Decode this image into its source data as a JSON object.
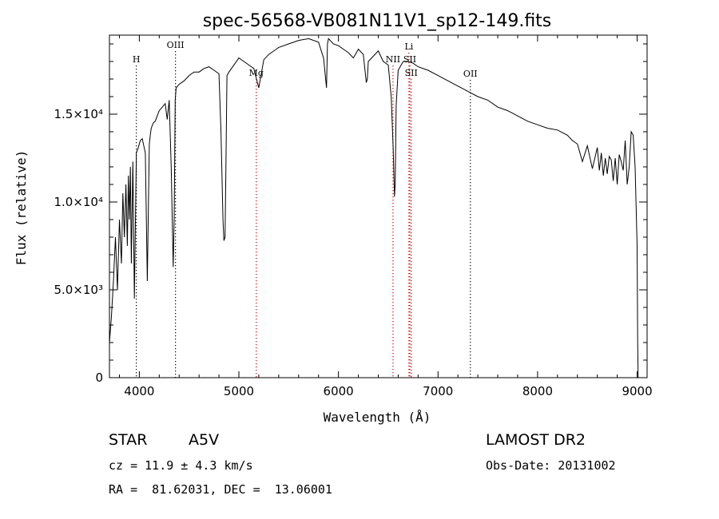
{
  "chart_data": {
    "type": "line",
    "title": "spec-56568-VB081N11V1_sp12-149.fits",
    "xlabel": "Wavelength (Å)",
    "ylabel": "Flux (relative)",
    "xlim": [
      3700,
      9100
    ],
    "ylim": [
      0,
      19500
    ],
    "x_ticks": [
      4000,
      5000,
      6000,
      7000,
      8000,
      9000
    ],
    "x_tick_labels": [
      "4000",
      "5000",
      "6000",
      "7000",
      "8000",
      "9000"
    ],
    "y_ticks": [
      0,
      5000,
      10000,
      15000
    ],
    "y_tick_labels": [
      "0",
      "5.0×10³",
      "1.0×10⁴",
      "1.5×10⁴"
    ],
    "series": [
      {
        "x": [
          3700,
          3720,
          3740,
          3760,
          3780,
          3800,
          3820,
          3835,
          3850,
          3865,
          3880,
          3890,
          3900,
          3910,
          3920,
          3935,
          3950,
          3970,
          3990,
          4010,
          4030,
          4060,
          4080,
          4100,
          4110,
          4120,
          4140,
          4160,
          4180,
          4200,
          4230,
          4260,
          4280,
          4300,
          4320,
          4340,
          4350,
          4360,
          4370,
          4400,
          4450,
          4500,
          4550,
          4600,
          4650,
          4700,
          4750,
          4800,
          4820,
          4840,
          4850,
          4861,
          4870,
          4880,
          4900,
          4950,
          5000,
          5050,
          5100,
          5150,
          5200,
          5250,
          5300,
          5400,
          5500,
          5600,
          5700,
          5800,
          5850,
          5880,
          5890,
          5900,
          5950,
          6000,
          6050,
          6100,
          6150,
          6200,
          6250,
          6280,
          6290,
          6300,
          6350,
          6400,
          6450,
          6500,
          6530,
          6550,
          6563,
          6570,
          6580,
          6600,
          6650,
          6700,
          6750,
          6800,
          6900,
          7000,
          7100,
          7200,
          7300,
          7400,
          7500,
          7600,
          7700,
          7800,
          7900,
          8000,
          8100,
          8200,
          8300,
          8350,
          8400,
          8450,
          8500,
          8550,
          8600,
          8620,
          8640,
          8660,
          8680,
          8700,
          8720,
          8740,
          8760,
          8780,
          8800,
          8820,
          8840,
          8860,
          8880,
          8900,
          8920,
          8940,
          8960,
          8980,
          9000,
          9005,
          9010
        ],
        "y": [
          2000,
          3500,
          5500,
          8000,
          5000,
          9000,
          6500,
          10500,
          8000,
          11000,
          7500,
          11500,
          9000,
          12000,
          6500,
          12300,
          4500,
          12800,
          13100,
          13500,
          13600,
          12800,
          5500,
          13300,
          13800,
          14200,
          14500,
          14600,
          14900,
          15200,
          15400,
          15600,
          14700,
          15800,
          12000,
          6300,
          9000,
          15800,
          16500,
          16700,
          16900,
          17200,
          17400,
          17400,
          17600,
          17700,
          17500,
          17300,
          14000,
          9000,
          7800,
          8000,
          12000,
          17200,
          17400,
          17800,
          18200,
          18000,
          17800,
          17600,
          16500,
          18100,
          18400,
          18800,
          19000,
          19200,
          19300,
          19100,
          18200,
          16500,
          19000,
          19300,
          19000,
          18900,
          18700,
          18500,
          18200,
          18700,
          18400,
          16800,
          17000,
          18000,
          18300,
          18600,
          18000,
          17800,
          16000,
          13000,
          10300,
          11000,
          15500,
          17500,
          18000,
          18000,
          17900,
          17700,
          17500,
          17200,
          16900,
          16600,
          16300,
          16000,
          15800,
          15400,
          15200,
          14900,
          14600,
          14400,
          14200,
          14100,
          13800,
          13500,
          13300,
          12300,
          13200,
          11900,
          13100,
          11800,
          12800,
          11500,
          12500,
          11600,
          12600,
          12400,
          11200,
          12500,
          11000,
          12700,
          12300,
          11800,
          13500,
          11000,
          12000,
          14000,
          13800,
          12000,
          7500,
          2000,
          0
        ]
      }
    ],
    "reference_lines": [
      {
        "label": "H",
        "x": 3970,
        "color": "#000000"
      },
      {
        "label": "OIII",
        "x": 4363,
        "color": "#000000"
      },
      {
        "label": "Mg",
        "x": 5175,
        "color": "#cc0000"
      },
      {
        "label": "NII",
        "x": 6548,
        "color": "#cc0000"
      },
      {
        "label": "Li",
        "x": 6708,
        "color": "#cc0000"
      },
      {
        "label": "SII",
        "x": 6717,
        "color": "#cc0000"
      },
      {
        "label": "SII",
        "x": 6731,
        "color": "#cc0000"
      },
      {
        "label": "OII",
        "x": 7325,
        "color": "#000000"
      }
    ],
    "grid": false,
    "legend": "none"
  },
  "info": {
    "object_class": "STAR",
    "subclass": "A5V",
    "survey": "LAMOST DR2",
    "cz": "cz = 11.9 ± 4.3 km/s",
    "obs_date": "Obs-Date: 20131002",
    "coords": "RA =  81.62031, DEC =  13.06001"
  }
}
